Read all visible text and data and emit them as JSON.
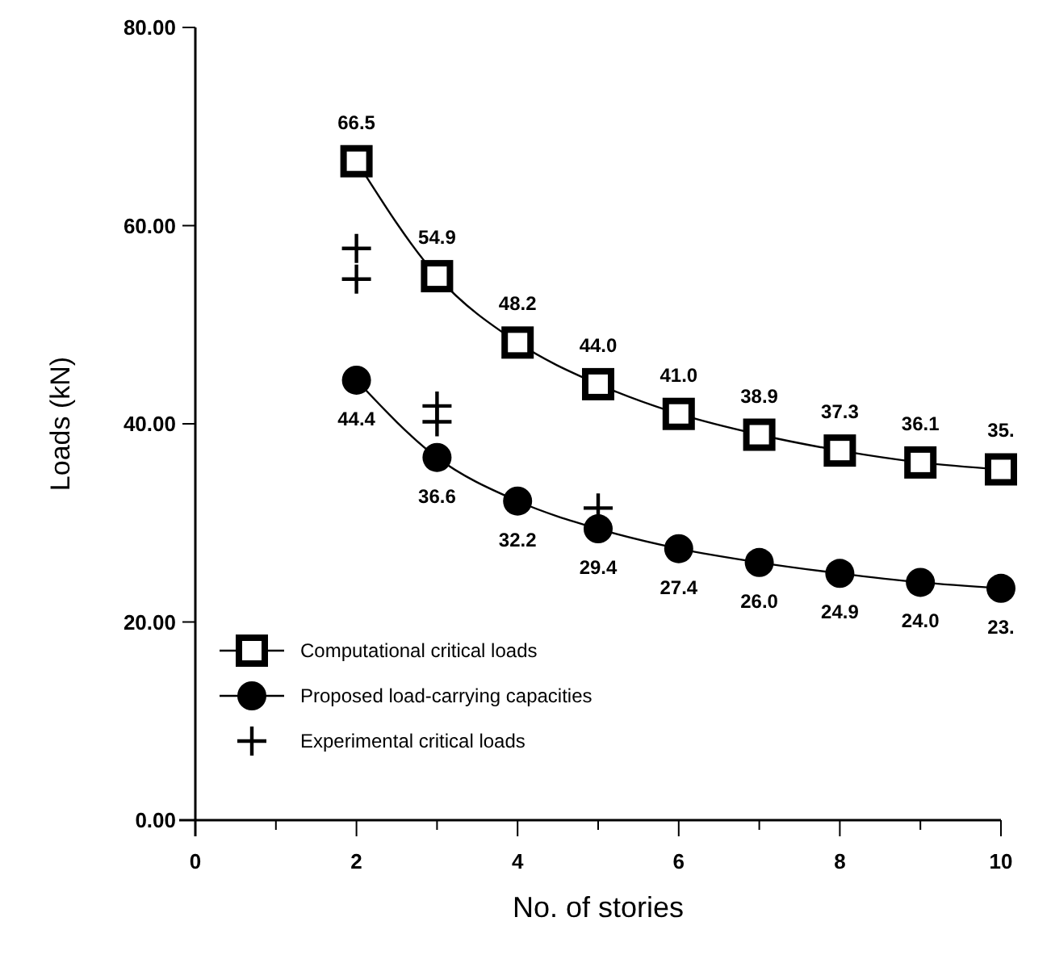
{
  "chart_data": {
    "type": "line",
    "xlabel": "No. of stories",
    "ylabel": "Loads (kN)",
    "xlim": [
      0,
      10
    ],
    "xticks": [
      0,
      {
        "value": 1,
        "label": null
      },
      2,
      {
        "value": 3,
        "label": null
      },
      4,
      {
        "value": 5,
        "label": null
      },
      6,
      {
        "value": 7,
        "label": null
      },
      8,
      {
        "value": 9,
        "label": null
      },
      10
    ],
    "ylim": [
      0,
      80
    ],
    "yticks": [
      {
        "value": 0,
        "label": "0.00"
      },
      {
        "value": 20,
        "label": "20.00"
      },
      {
        "value": 40,
        "label": "40.00"
      },
      {
        "value": 60,
        "label": "60.00"
      },
      {
        "value": 80,
        "label": "80.00"
      }
    ],
    "grid": false,
    "legend": "bottom left",
    "series": [
      {
        "name": "Computational critical loads",
        "type": "line",
        "marker": "square",
        "color": "#000000",
        "x": [
          2,
          3,
          4,
          5,
          6,
          7,
          8,
          9,
          10
        ],
        "values": [
          66.5,
          54.9,
          48.2,
          44.0,
          41.0,
          38.9,
          37.3,
          36.1,
          35.4
        ],
        "value_labels": [
          "66.5",
          "54.9",
          "48.2",
          "44.0",
          "41.0",
          "38.9",
          "37.3",
          "36.1",
          "35."
        ]
      },
      {
        "name": "Proposed load-carrying capacities",
        "type": "line",
        "marker": "circle",
        "color": "#000000",
        "x": [
          2,
          3,
          4,
          5,
          6,
          7,
          8,
          9,
          10
        ],
        "values": [
          44.4,
          36.6,
          32.2,
          29.4,
          27.4,
          26.0,
          24.9,
          24.0,
          23.4
        ],
        "value_labels": [
          "44.4",
          "36.6",
          "32.2",
          "29.4",
          "27.4",
          "26.0",
          "24.9",
          "24.0",
          "23."
        ]
      },
      {
        "name": "Experimental critical loads",
        "type": "scatter",
        "marker": "cross",
        "color": "#000000",
        "x": [
          2,
          2,
          3,
          3,
          5
        ],
        "values": [
          57.7,
          54.6,
          41.8,
          40.2,
          31.5
        ]
      }
    ]
  }
}
